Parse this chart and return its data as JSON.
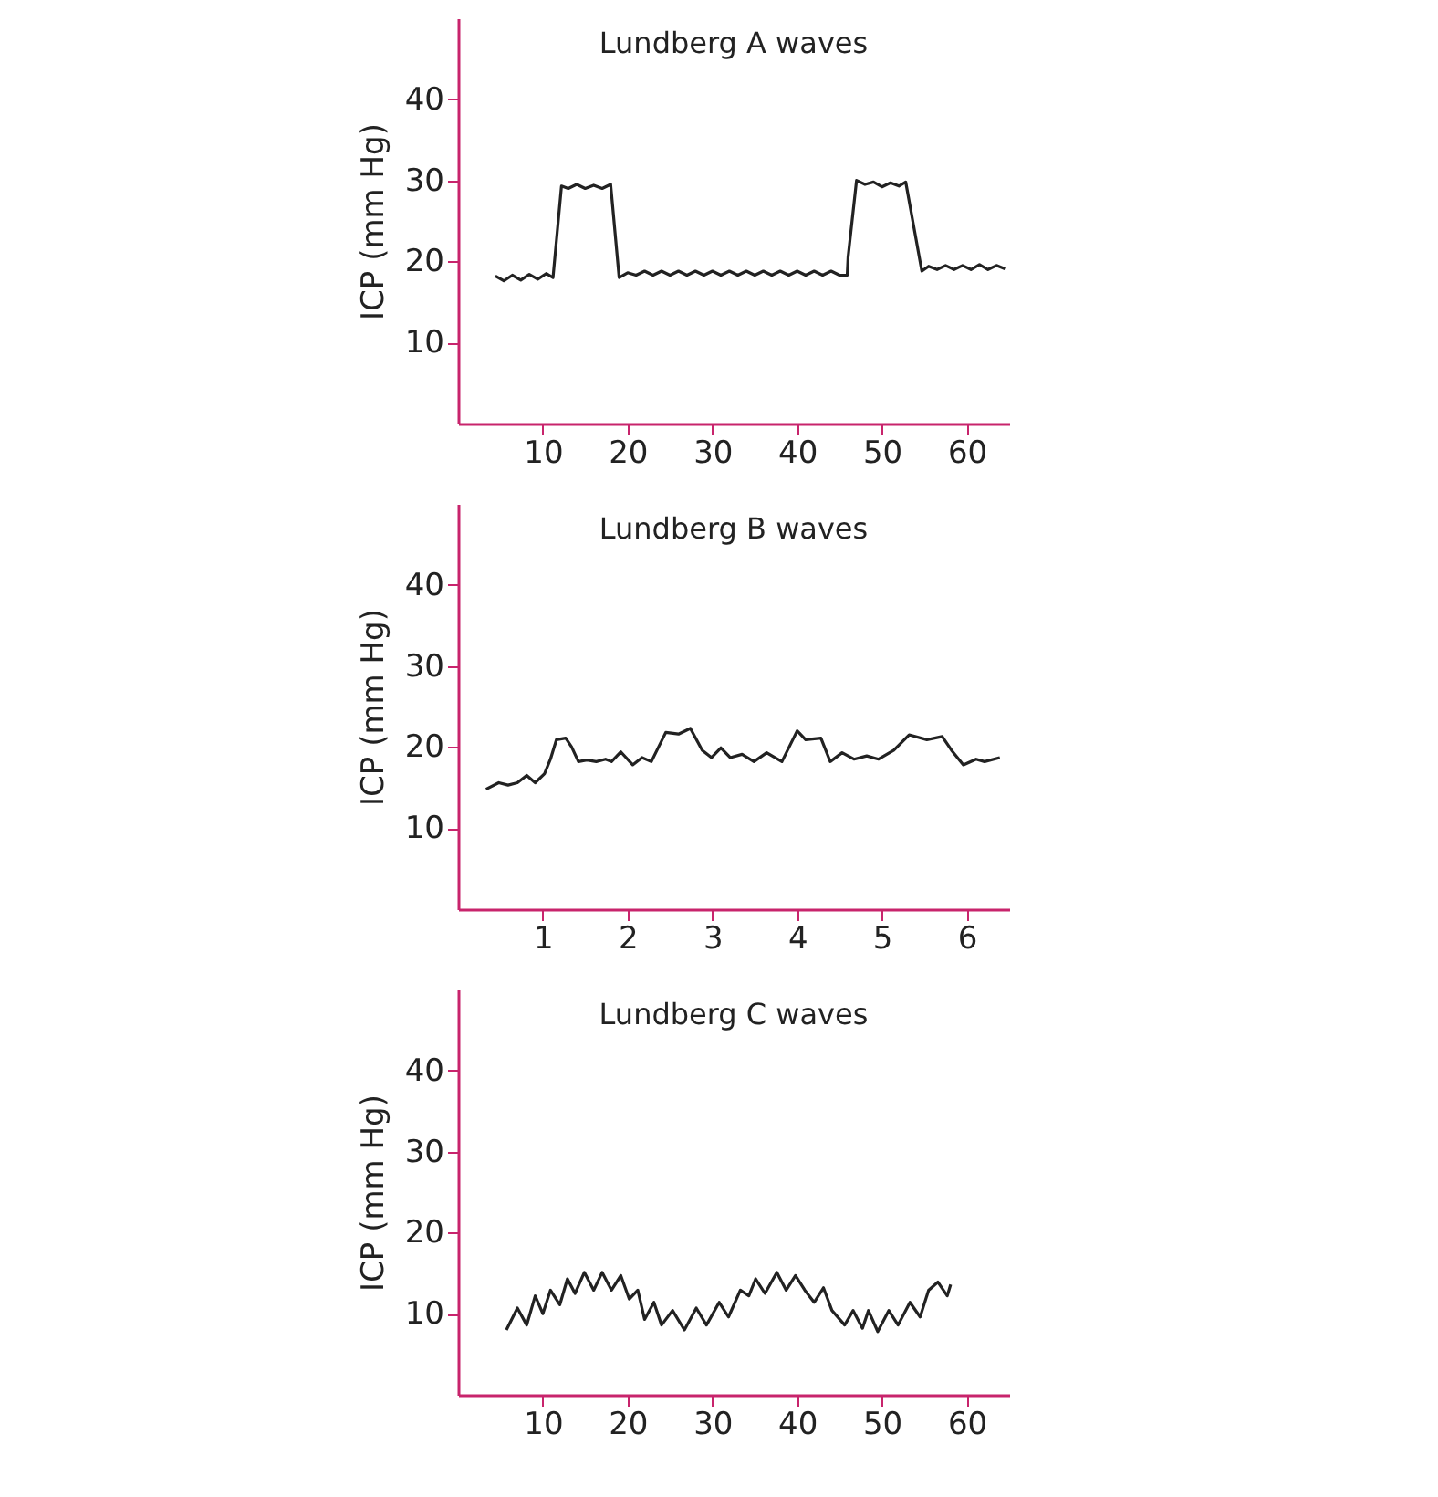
{
  "chart_data": [
    {
      "type": "line",
      "title": "Lundberg A waves",
      "ylabel": "ICP (mm Hg)",
      "xlim": [
        0,
        65
      ],
      "ylim": [
        0,
        50
      ],
      "xticks": [
        10,
        20,
        30,
        40,
        50,
        60
      ],
      "yticks": [
        10,
        20,
        30,
        40
      ],
      "grid": false,
      "series": [
        {
          "color": "#222222",
          "x": [
            4.4,
            5.4,
            6.4,
            7.4,
            8.4,
            9.4,
            10.4,
            11.2,
            12.2,
            13,
            14,
            15,
            16,
            17,
            18,
            19,
            20,
            21,
            22,
            23,
            24,
            25,
            26,
            27,
            28,
            29,
            30,
            31,
            32,
            33,
            34,
            35,
            36,
            37,
            38,
            39,
            40,
            41,
            42,
            43,
            44,
            45,
            45.9,
            46.0,
            47,
            48,
            49,
            50,
            51,
            52,
            52.8,
            54.7,
            55.5,
            56.5,
            57.5,
            58.5,
            59.5,
            60.5,
            61.5,
            62.5,
            63.5,
            64.5
          ],
          "values": [
            18.2,
            17.6,
            18.3,
            17.7,
            18.4,
            17.8,
            18.5,
            18.0,
            29.3,
            29.0,
            29.5,
            29.0,
            29.4,
            29.0,
            29.5,
            18.0,
            18.6,
            18.3,
            18.8,
            18.3,
            18.8,
            18.3,
            18.8,
            18.3,
            18.8,
            18.3,
            18.8,
            18.3,
            18.8,
            18.3,
            18.8,
            18.3,
            18.8,
            18.3,
            18.8,
            18.3,
            18.8,
            18.3,
            18.8,
            18.3,
            18.8,
            18.3,
            18.3,
            20.5,
            30.0,
            29.5,
            29.8,
            29.2,
            29.7,
            29.3,
            29.8,
            18.8,
            19.4,
            19.0,
            19.5,
            19.0,
            19.5,
            19.0,
            19.6,
            19.0,
            19.5,
            19.1
          ]
        }
      ]
    },
    {
      "type": "line",
      "title": "Lundberg B waves",
      "ylabel": "ICP (mm Hg)",
      "xlim": [
        0,
        6.5
      ],
      "ylim": [
        0,
        50
      ],
      "xticks": [
        1,
        2,
        3,
        4,
        5,
        6
      ],
      "yticks": [
        10,
        20,
        30,
        40
      ],
      "grid": false,
      "series": [
        {
          "color": "#222222",
          "x": [
            0.33,
            0.48,
            0.59,
            0.7,
            0.81,
            0.91,
            1.02,
            1.09,
            1.16,
            1.27,
            1.34,
            1.42,
            1.52,
            1.63,
            1.74,
            1.81,
            1.92,
            2.06,
            2.17,
            2.28,
            2.45,
            2.6,
            2.74,
            2.88,
            2.99,
            3.1,
            3.21,
            3.35,
            3.49,
            3.64,
            3.82,
            4.0,
            4.1,
            4.28,
            4.39,
            4.53,
            4.67,
            4.82,
            4.96,
            5.14,
            5.32,
            5.53,
            5.71,
            5.82,
            5.96,
            6.11,
            6.21,
            6.39
          ],
          "values": [
            14.8,
            15.6,
            15.3,
            15.6,
            16.5,
            15.6,
            16.7,
            18.5,
            20.9,
            21.1,
            20.0,
            18.2,
            18.4,
            18.2,
            18.5,
            18.2,
            19.4,
            17.8,
            18.7,
            18.2,
            21.8,
            21.6,
            22.3,
            19.6,
            18.7,
            19.9,
            18.7,
            19.1,
            18.2,
            19.3,
            18.2,
            22.0,
            20.9,
            21.1,
            18.2,
            19.3,
            18.5,
            18.9,
            18.5,
            19.6,
            21.5,
            20.9,
            21.3,
            19.6,
            17.8,
            18.5,
            18.2,
            18.7
          ]
        }
      ]
    },
    {
      "type": "line",
      "title": "Lundberg C waves",
      "ylabel": "ICP (mm Hg)",
      "xlim": [
        0,
        65
      ],
      "ylim": [
        0,
        50
      ],
      "xticks": [
        10,
        20,
        30,
        40,
        50,
        60
      ],
      "yticks": [
        10,
        20,
        30,
        40
      ],
      "grid": false,
      "series": [
        {
          "color": "#222222",
          "x": [
            5.7,
            7.0,
            8.1,
            9.1,
            10.0,
            10.9,
            12.0,
            12.9,
            13.8,
            14.9,
            16.0,
            17.0,
            18.1,
            19.2,
            20.2,
            21.2,
            22.0,
            23.1,
            24.0,
            25.3,
            26.7,
            28.1,
            29.3,
            30.8,
            31.9,
            33.3,
            34.3,
            35.1,
            36.2,
            37.6,
            38.7,
            39.8,
            40.9,
            42.0,
            43.1,
            44.1,
            45.6,
            46.6,
            47.7,
            48.4,
            49.5,
            50.8,
            51.9,
            53.3,
            54.5,
            55.5,
            56.6,
            57.7,
            58.1
          ],
          "values": [
            8.0,
            10.7,
            8.6,
            12.2,
            10.0,
            12.9,
            11.1,
            14.3,
            12.5,
            15.1,
            12.9,
            15.1,
            12.9,
            14.7,
            11.8,
            12.9,
            9.3,
            11.4,
            8.6,
            10.4,
            8.0,
            10.7,
            8.6,
            11.4,
            9.6,
            12.9,
            12.2,
            14.3,
            12.5,
            15.1,
            12.9,
            14.7,
            12.9,
            11.4,
            13.2,
            10.4,
            8.6,
            10.4,
            8.2,
            10.4,
            7.8,
            10.4,
            8.6,
            11.4,
            9.6,
            12.9,
            13.9,
            12.2,
            13.6
          ]
        }
      ]
    }
  ]
}
